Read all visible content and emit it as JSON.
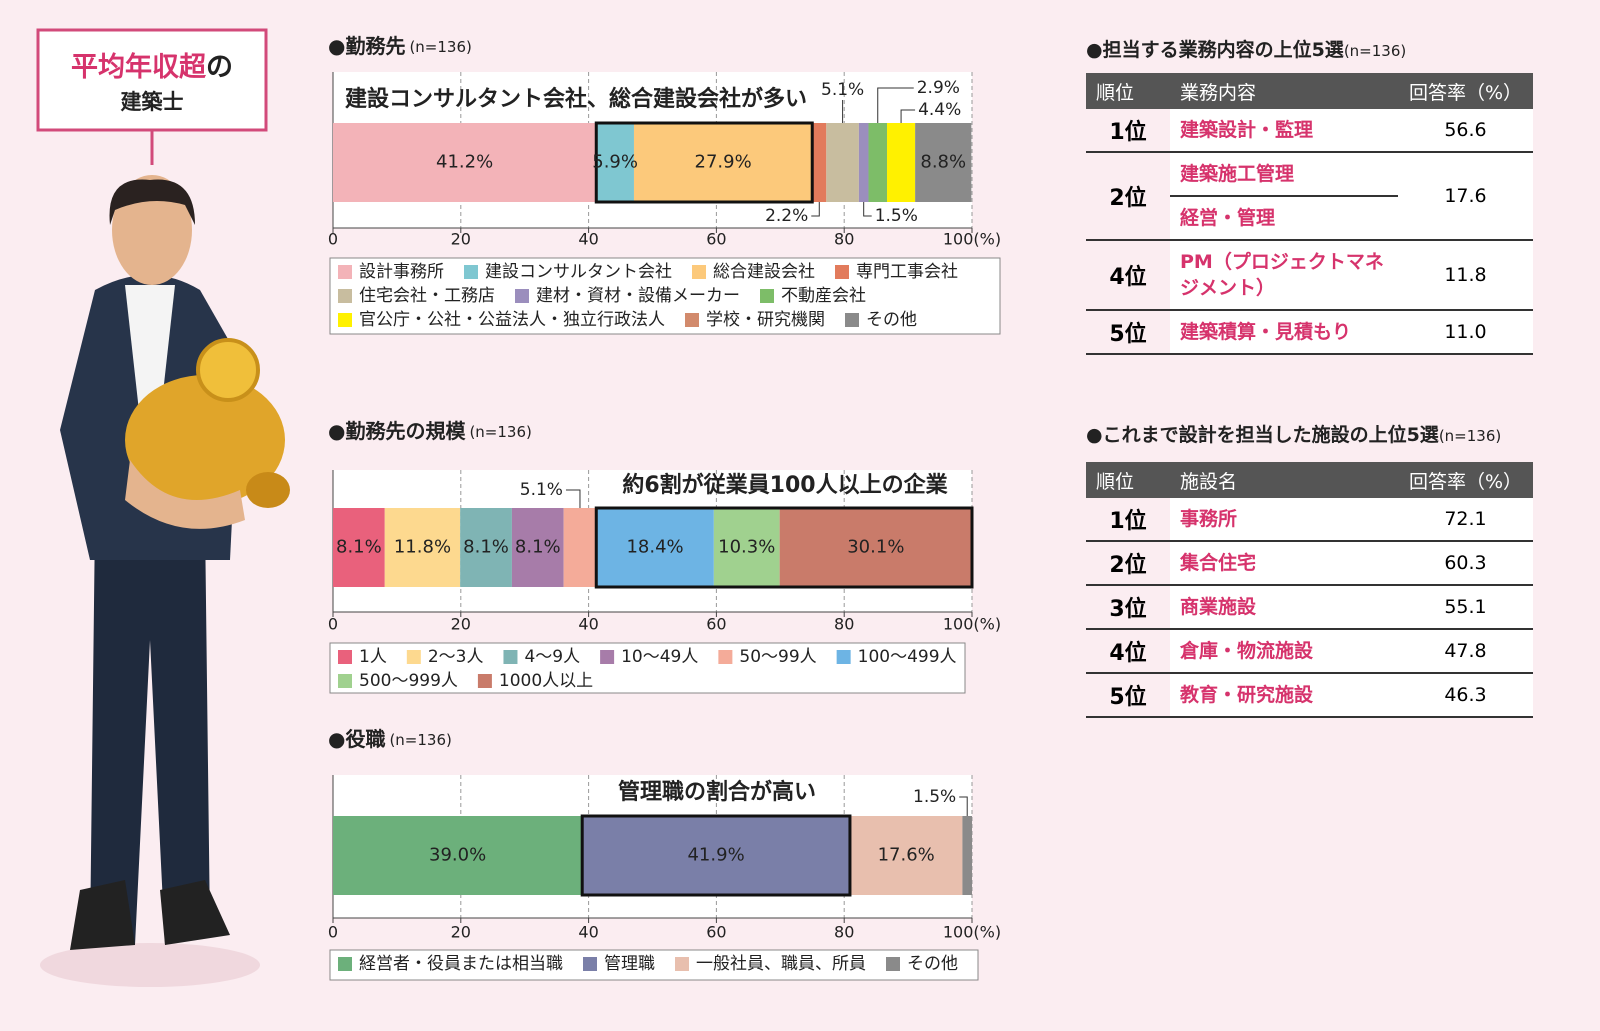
{
  "header": {
    "highlight": "平均年収超",
    "rest": "の",
    "subtitle": "建築士"
  },
  "chart_data": [
    {
      "type": "bar",
      "orientation": "horizontal",
      "stacked": true,
      "title": "●勤務先",
      "note": "(n=136)",
      "annotation": "建設コンサルタント会社、総合建設会社が多い",
      "series": [
        {
          "name": "設計事務所",
          "color": "#f3b3b8",
          "values": [
            41.2
          ],
          "value_labels": [
            "41.2%"
          ]
        },
        {
          "name": "建設コンサルタント会社",
          "color": "#7fc7d1",
          "values": [
            5.9
          ],
          "value_labels": [
            "5.9%"
          ]
        },
        {
          "name": "総合建設会社",
          "color": "#fcc97b",
          "values": [
            27.9
          ],
          "value_labels": [
            "27.9%"
          ]
        },
        {
          "name": "専門工事会社",
          "color": "#e27b5c",
          "values": [
            2.2
          ],
          "value_labels": [
            "2.2%"
          ]
        },
        {
          "name": "住宅会社・工務店",
          "color": "#c8bd9f",
          "values": [
            5.1
          ],
          "value_labels": [
            "5.1%"
          ]
        },
        {
          "name": "建材・資材・設備メーカー",
          "color": "#9b8ebd",
          "values": [
            1.5
          ],
          "value_labels": [
            "1.5%"
          ]
        },
        {
          "name": "不動産会社",
          "color": "#7dbd68",
          "values": [
            2.9
          ],
          "value_labels": [
            "2.9%"
          ]
        },
        {
          "name": "官公庁・公社・公益法人・独立行政法人",
          "color": "#fff100",
          "values": [
            4.4
          ],
          "value_labels": [
            "4.4%"
          ]
        },
        {
          "name": "学校・研究機関",
          "color": "#d28a6c",
          "values": [
            0
          ],
          "value_labels": [
            null
          ]
        },
        {
          "name": "その他",
          "color": "#8a8a8a",
          "values": [
            8.8
          ],
          "value_labels": [
            "8.8%"
          ]
        }
      ],
      "xlim": [
        0,
        100
      ],
      "xticks": [
        0,
        20,
        40,
        60,
        80,
        {
          "value": 100,
          "label": "100(%)"
        }
      ],
      "grid": true,
      "highlight": [
        1,
        2
      ]
    },
    {
      "type": "bar",
      "orientation": "horizontal",
      "stacked": true,
      "title": "●勤務先の規模",
      "note": "(n=136)",
      "annotation": "約6割が従業員100人以上の企業",
      "series": [
        {
          "name": "1人",
          "color": "#e9617c",
          "values": [
            8.1
          ],
          "value_labels": [
            "8.1%"
          ]
        },
        {
          "name": "2〜3人",
          "color": "#fdd98f",
          "values": [
            11.8
          ],
          "value_labels": [
            "11.8%"
          ]
        },
        {
          "name": "4〜9人",
          "color": "#7fb4b4",
          "values": [
            8.1
          ],
          "value_labels": [
            "8.1%"
          ]
        },
        {
          "name": "10〜49人",
          "color": "#a77ca9",
          "values": [
            8.1
          ],
          "value_labels": [
            "8.1%"
          ]
        },
        {
          "name": "50〜99人",
          "color": "#f4ab99",
          "values": [
            5.1
          ],
          "value_labels": [
            "5.1%"
          ]
        },
        {
          "name": "100〜499人",
          "color": "#6db4e4",
          "values": [
            18.4
          ],
          "value_labels": [
            "18.4%"
          ]
        },
        {
          "name": "500〜999人",
          "color": "#a0d18f",
          "values": [
            10.3
          ],
          "value_labels": [
            "10.3%"
          ]
        },
        {
          "name": "1000人以上",
          "color": "#c97b6a",
          "values": [
            30.1
          ],
          "value_labels": [
            "30.1%"
          ]
        }
      ],
      "xlim": [
        0,
        100
      ],
      "xticks": [
        0,
        20,
        40,
        60,
        80,
        {
          "value": 100,
          "label": "100(%)"
        }
      ],
      "grid": true,
      "highlight": [
        5,
        6,
        7
      ]
    },
    {
      "type": "bar",
      "orientation": "horizontal",
      "stacked": true,
      "title": "●役職",
      "note": "(n=136)",
      "annotation": "管理職の割合が高い",
      "series": [
        {
          "name": "経営者・役員または相当職",
          "color": "#6cb07b",
          "values": [
            39.0
          ],
          "value_labels": [
            "39.0%"
          ]
        },
        {
          "name": "管理職",
          "color": "#7a7fa8",
          "values": [
            41.9
          ],
          "value_labels": [
            "41.9%"
          ]
        },
        {
          "name": "一般社員、職員、所員",
          "color": "#e8bfae",
          "values": [
            17.6
          ],
          "value_labels": [
            "17.6%"
          ]
        },
        {
          "name": "その他",
          "color": "#8a8a8a",
          "values": [
            1.5
          ],
          "value_labels": [
            "1.5%"
          ]
        }
      ],
      "xlim": [
        0,
        100
      ],
      "xticks": [
        0,
        20,
        40,
        60,
        80,
        {
          "value": 100,
          "label": "100(%)"
        }
      ],
      "grid": true,
      "highlight": [
        1
      ]
    }
  ],
  "tables": [
    {
      "title": "●担当する業務内容の上位5選",
      "note": "(n=136)",
      "columns": [
        "順位",
        "業務内容",
        "回答率（%）"
      ],
      "rows": [
        {
          "rank": "1位",
          "items": [
            "建築設計・監理"
          ],
          "rate": "56.6"
        },
        {
          "rank": "2位",
          "items": [
            "建築施工管理",
            "経営・管理"
          ],
          "rate": "17.6"
        },
        {
          "rank": "4位",
          "items": [
            "PM（プロジェクトマネジメント）"
          ],
          "rate": "11.8"
        },
        {
          "rank": "5位",
          "items": [
            "建築積算・見積もり"
          ],
          "rate": "11.0"
        }
      ]
    },
    {
      "title": "●これまで設計を担当した施設の上位5選",
      "note": "(n=136)",
      "columns": [
        "順位",
        "施設名",
        "回答率（%）"
      ],
      "rows": [
        {
          "rank": "1位",
          "items": [
            "事務所"
          ],
          "rate": "72.1"
        },
        {
          "rank": "2位",
          "items": [
            "集合住宅"
          ],
          "rate": "60.3"
        },
        {
          "rank": "3位",
          "items": [
            "商業施設"
          ],
          "rate": "55.1"
        },
        {
          "rank": "4位",
          "items": [
            "倉庫・物流施設"
          ],
          "rate": "47.8"
        },
        {
          "rank": "5位",
          "items": [
            "教育・研究施設"
          ],
          "rate": "46.3"
        }
      ]
    }
  ]
}
